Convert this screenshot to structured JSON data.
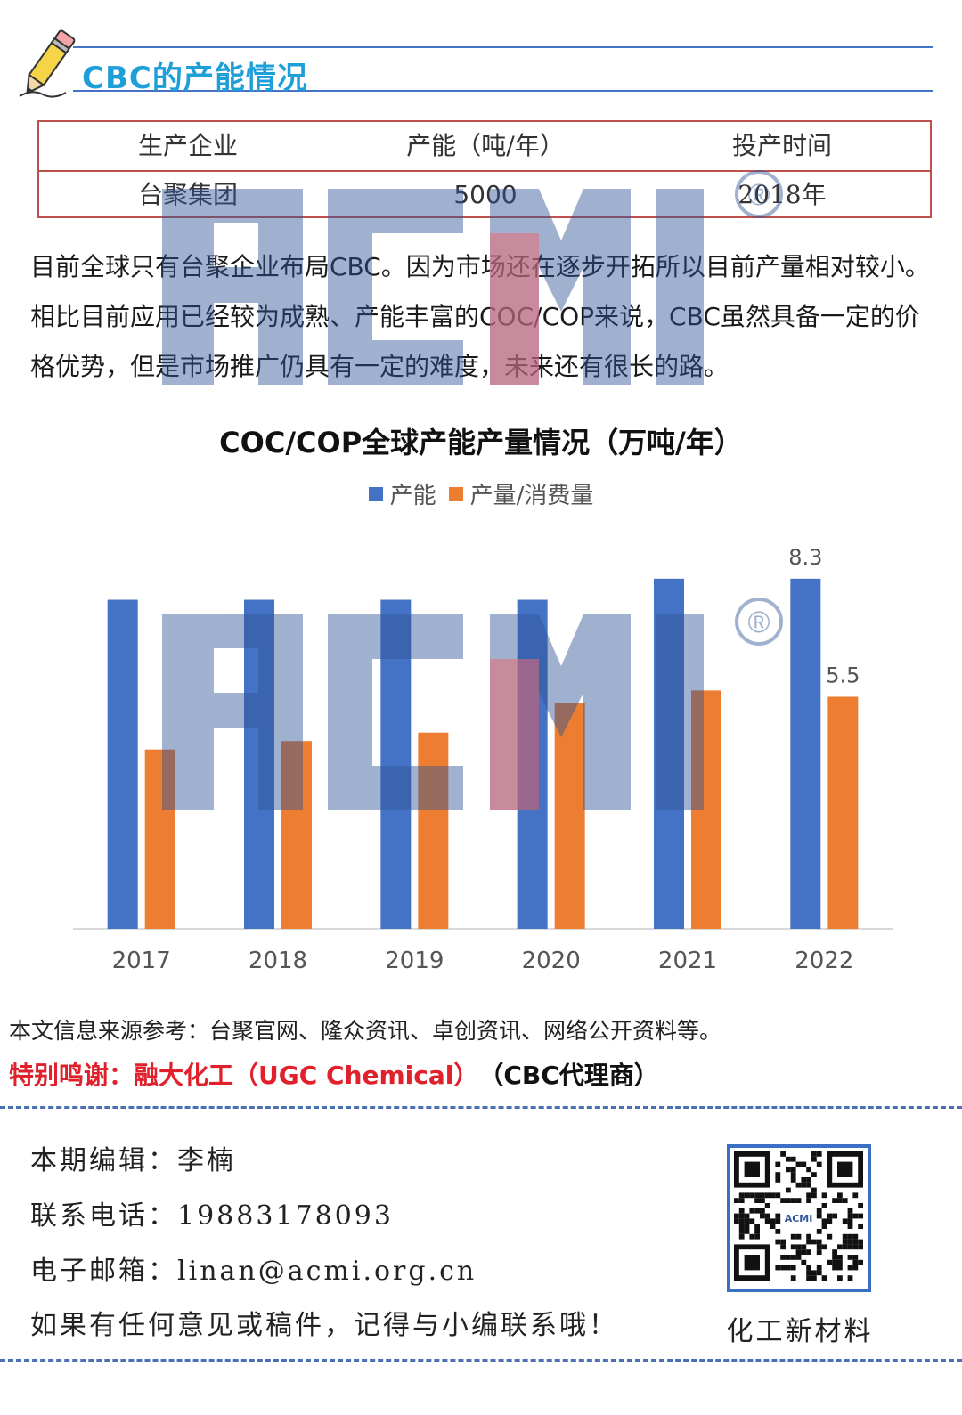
{
  "header": {
    "title": "CBC的产能情况"
  },
  "table": {
    "headers": [
      "生产企业",
      "产能（吨/年）",
      "投产时间"
    ],
    "rows": [
      [
        "台聚集团",
        "5000",
        "2018年"
      ]
    ]
  },
  "paragraph": "目前全球只有台聚企业布局CBC。因为市场还在逐步开拓所以目前产量相对较小。相比目前应用已经较为成熟、产能丰富的COC/COP来说，CBC虽然具备一定的价格优势，但是市场推广仍具有一定的难度，未来还有很长的路。",
  "chart_data": {
    "type": "bar",
    "title": "COC/COP全球产能产量情况（万吨/年）",
    "categories": [
      "2017",
      "2018",
      "2019",
      "2020",
      "2021",
      "2022"
    ],
    "series": [
      {
        "name": "产能",
        "color": "#4472c4",
        "values": [
          7.8,
          7.8,
          7.8,
          7.8,
          8.3,
          8.3
        ]
      },
      {
        "name": "产量/消费量",
        "color": "#ed7d31",
        "values": [
          4.25,
          4.45,
          4.65,
          5.35,
          5.65,
          5.5
        ]
      }
    ],
    "data_labels": {
      "产能": {
        "2022": "8.3"
      },
      "产量/消费量": {
        "2022": "5.5"
      }
    },
    "ylim": [
      0,
      9.5
    ],
    "grid": false,
    "legend_position": "top"
  },
  "notes": {
    "source": "本文信息来源参考：台聚官网、隆众资讯、卓创资讯、网络公开资料等。",
    "thanks_red": "特别鸣谢：融大化工（UGC Chemical）",
    "thanks_black": "（CBC代理商）"
  },
  "footer": {
    "editor": "本期编辑：李楠",
    "phone": "联系电话：19883178093",
    "email": "电子邮箱：linan@acmi.org.cn",
    "invite": "如果有任何意见或稿件，记得与小编联系哦！",
    "qr_caption": "化工新材料",
    "qr_logo": "ACMI"
  },
  "watermark": {
    "text": "ACMI",
    "mark": "®"
  },
  "icons": {
    "pencil": "pencil-icon",
    "qr": "qr-code-icon"
  }
}
